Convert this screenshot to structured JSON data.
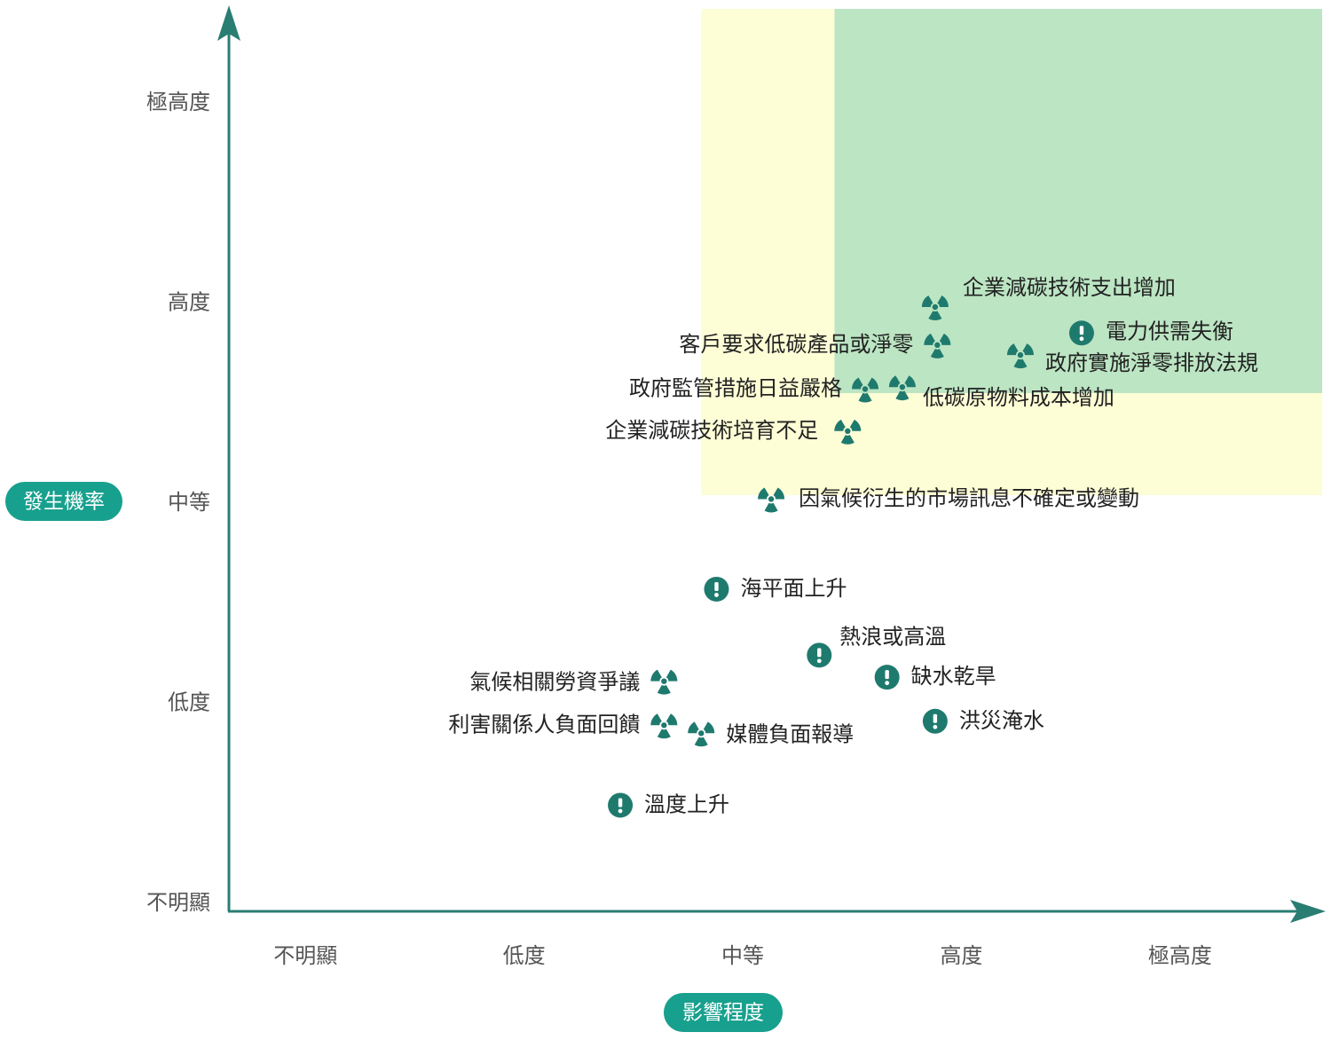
{
  "chart_data": {
    "type": "scatter",
    "x_label": "影響程度",
    "y_label": "發生機率",
    "xlim": [
      -0.35,
      4.65
    ],
    "ylim": [
      -0.04,
      4.47
    ],
    "xticks": [
      {
        "value": 0,
        "label": "不明顯"
      },
      {
        "value": 1,
        "label": "低度"
      },
      {
        "value": 2,
        "label": "中等"
      },
      {
        "value": 3,
        "label": "高度"
      },
      {
        "value": 4,
        "label": "極高度"
      }
    ],
    "yticks": [
      {
        "value": 0,
        "label": "不明顯"
      },
      {
        "value": 1,
        "label": "低度"
      },
      {
        "value": 2,
        "label": "中等"
      },
      {
        "value": 3,
        "label": "高度"
      },
      {
        "value": 4,
        "label": "極高度"
      }
    ],
    "zones": [
      {
        "color": "#fdfdd6",
        "xlim": [
          1.81,
          4.65
        ],
        "ylim": [
          2.04,
          4.47
        ]
      },
      {
        "color": "#bce5c3",
        "xlim": [
          2.42,
          4.65
        ],
        "ylim": [
          2.55,
          4.47
        ]
      }
    ],
    "series": [
      {
        "marker": "radiation",
        "color": "#1f7a6e",
        "labels": [
          "企業減碳技術支出增加",
          "客戶要求低碳產品或淨零",
          "政府實施淨零排放法規",
          "政府監管措施日益嚴格",
          "低碳原物料成本增加",
          "企業減碳技術培育不足",
          "因氣候衍生的市場訊息不確定或變動",
          "氣候相關勞資爭議",
          "利害關係人負面回饋",
          "媒體負面報導"
        ],
        "x": [
          2.88,
          2.89,
          3.27,
          2.56,
          2.73,
          2.48,
          2.13,
          1.64,
          1.64,
          1.81
        ],
        "values": [
          2.98,
          2.79,
          2.74,
          2.57,
          2.58,
          2.36,
          2.02,
          1.11,
          0.89,
          0.85
        ]
      },
      {
        "marker": "alert",
        "color": "#1f7a6e",
        "labels": [
          "電力供需失衡",
          "海平面上升",
          "熱浪或高溫",
          "缺水乾旱",
          "洪災淹水",
          "溫度上升"
        ],
        "x": [
          3.55,
          1.88,
          2.35,
          2.66,
          2.88,
          1.44
        ],
        "values": [
          2.85,
          1.57,
          1.24,
          1.13,
          0.91,
          0.49
        ]
      }
    ]
  }
}
